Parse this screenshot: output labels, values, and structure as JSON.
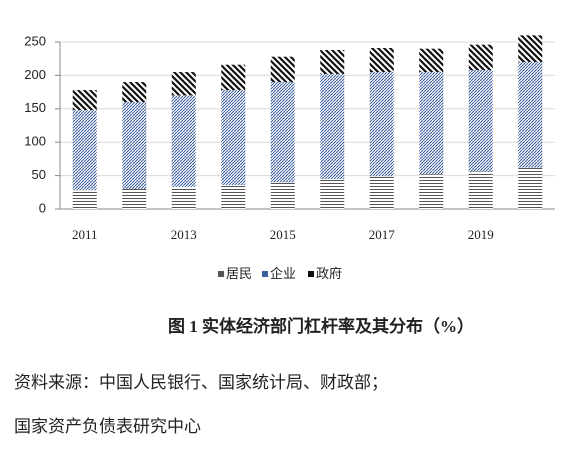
{
  "chart_data": {
    "type": "bar",
    "stacked": true,
    "categories": [
      "2011",
      null,
      "2013",
      null,
      "2015",
      null,
      "2017",
      null,
      "2019",
      null
    ],
    "series": [
      {
        "name": "居民",
        "color": "#555555",
        "values": [
          28,
          30,
          33,
          36,
          40,
          45,
          49,
          52,
          56,
          62
        ]
      },
      {
        "name": "企业",
        "color": "#3c5f9e",
        "values": [
          120,
          130,
          137,
          142,
          150,
          157,
          156,
          153,
          152,
          158
        ]
      },
      {
        "name": "政府",
        "color": "#111111",
        "values": [
          30,
          30,
          35,
          38,
          38,
          36,
          36,
          35,
          38,
          40
        ]
      }
    ],
    "ylim": [
      0,
      250
    ],
    "yticks": [
      0,
      50,
      100,
      150,
      200,
      250
    ],
    "grid": true,
    "legend": "bottom"
  },
  "caption": "图 1 实体经济部门杠杆率及其分布（%）",
  "source": "资料来源：中国人民银行、国家统计局、财政部；",
  "author": "国家资产负债表研究中心"
}
